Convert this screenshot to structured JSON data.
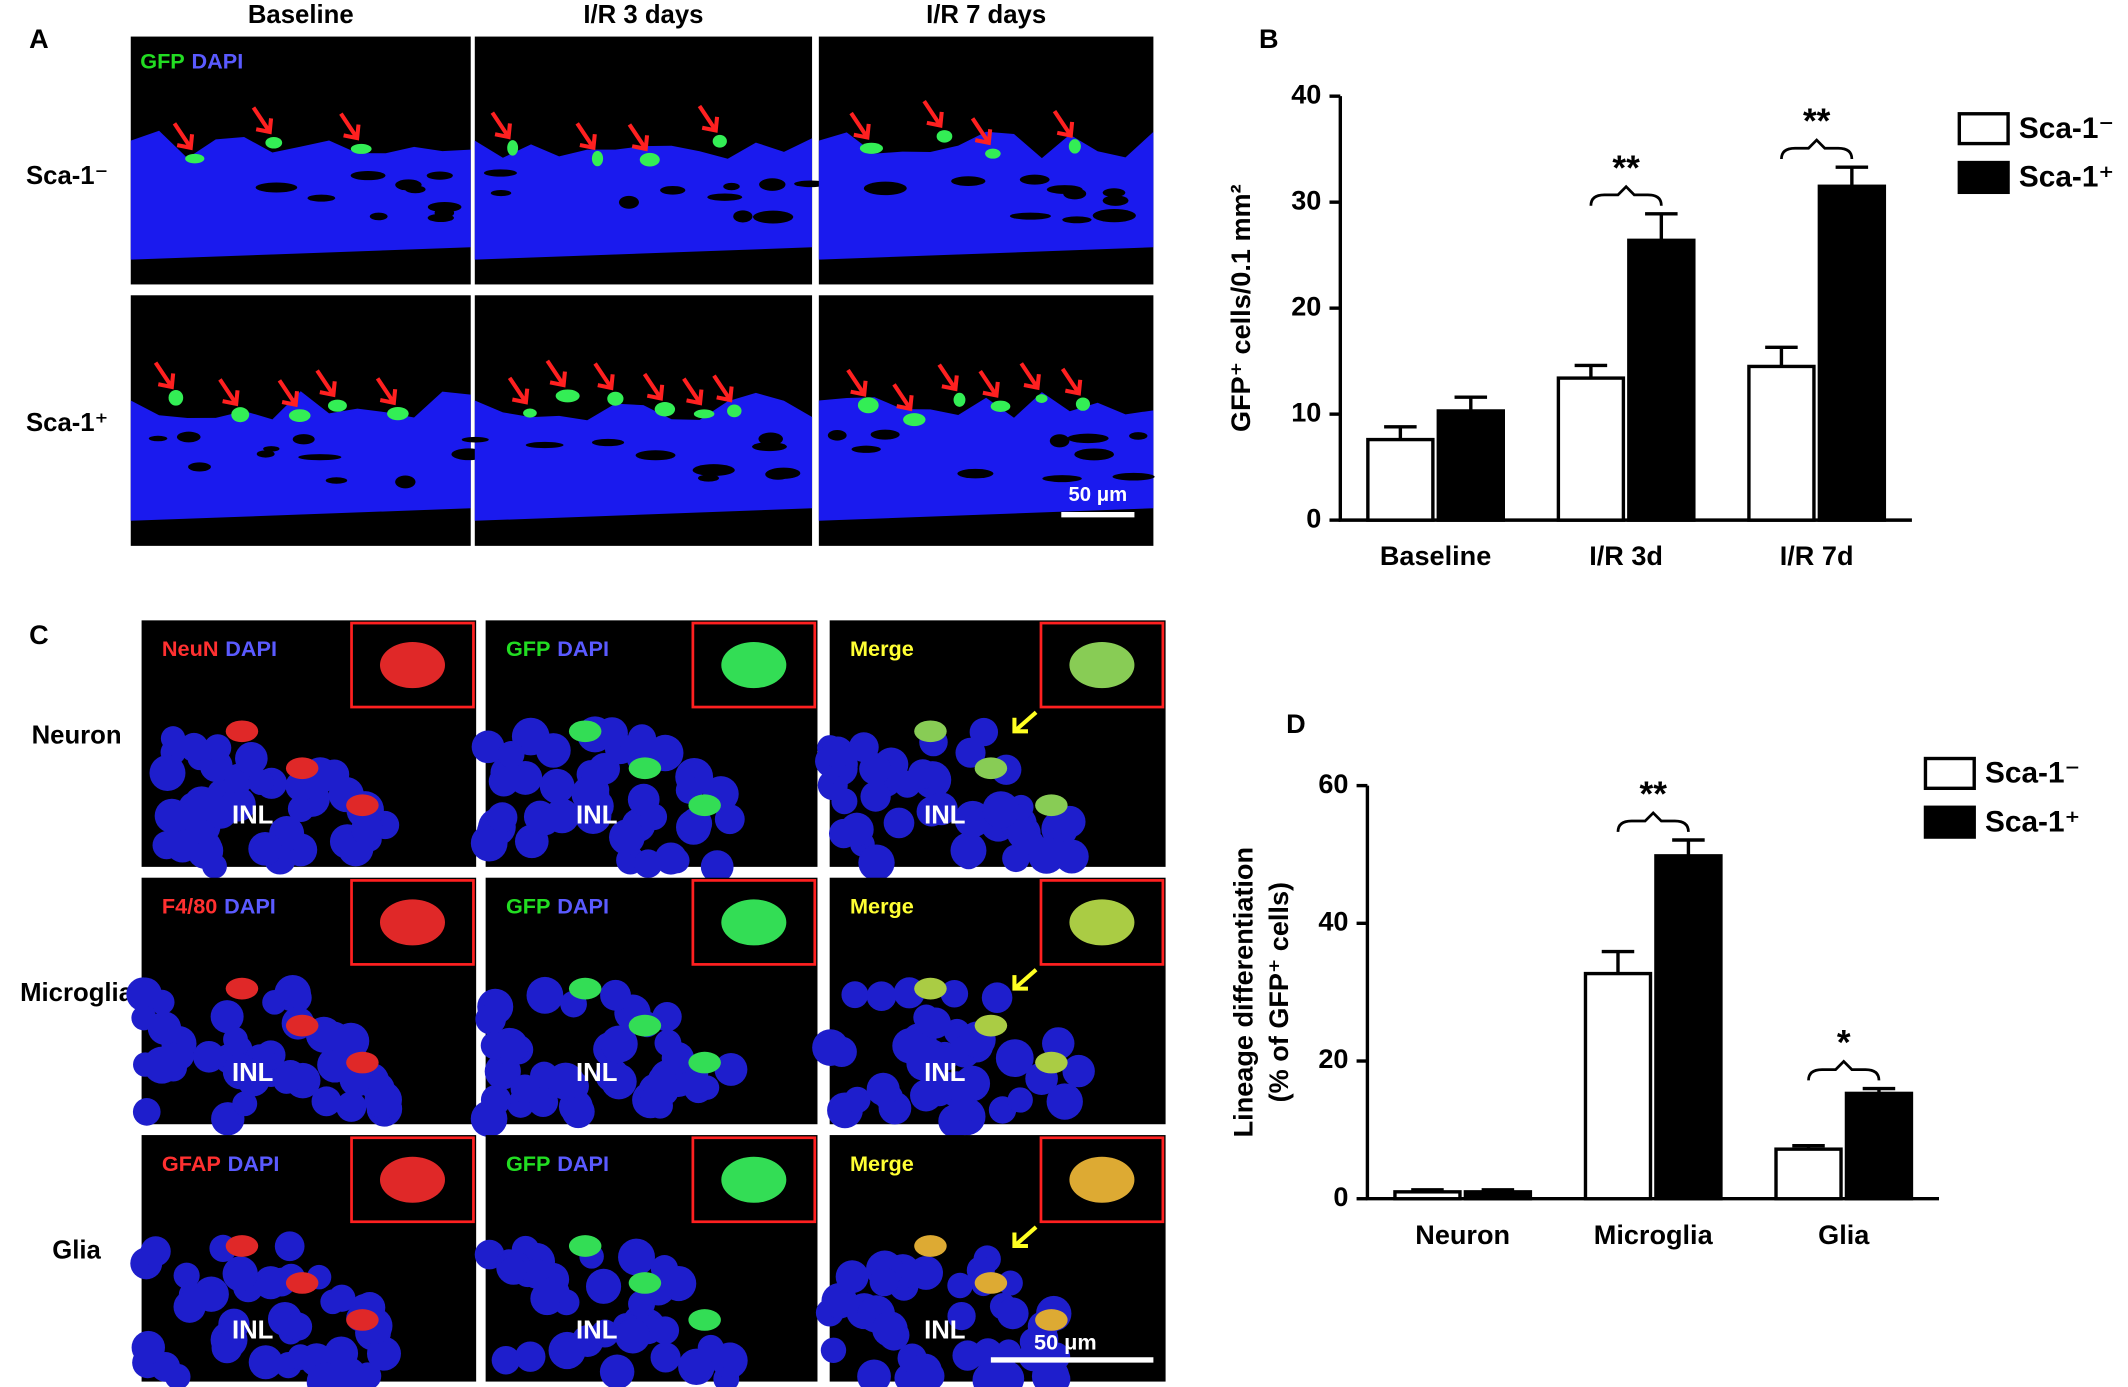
{
  "panel_a": {
    "letter": "A",
    "columns": [
      "Baseline",
      "I/R 3 days",
      "I/R 7 days"
    ],
    "rows": [
      "Sca-1⁻",
      "Sca-1⁺"
    ],
    "stain": [
      {
        "text": "GFP",
        "color": "#22dd22"
      },
      {
        "text": "DAPI",
        "color": "#5a5aff"
      }
    ],
    "scale_bar": "50 μm"
  },
  "panel_c": {
    "letter": "C",
    "rows": [
      "Neuron",
      "Microglia",
      "Glia"
    ],
    "stains": [
      [
        [
          {
            "text": "NeuN",
            "color": "#ff3030"
          },
          {
            "text": "DAPI",
            "color": "#5a5aff"
          }
        ],
        [
          {
            "text": "GFP",
            "color": "#22dd22"
          },
          {
            "text": "DAPI",
            "color": "#5a5aff"
          }
        ],
        [
          {
            "text": "Merge",
            "color": "#ffff33"
          }
        ]
      ],
      [
        [
          {
            "text": "F4/80",
            "color": "#ff3030"
          },
          {
            "text": "DAPI",
            "color": "#5a5aff"
          }
        ],
        [
          {
            "text": "GFP",
            "color": "#22dd22"
          },
          {
            "text": "DAPI",
            "color": "#5a5aff"
          }
        ],
        [
          {
            "text": "Merge",
            "color": "#ffff33"
          }
        ]
      ],
      [
        [
          {
            "text": "GFAP",
            "color": "#ff3030"
          },
          {
            "text": "DAPI",
            "color": "#5a5aff"
          }
        ],
        [
          {
            "text": "GFP",
            "color": "#22dd22"
          },
          {
            "text": "DAPI",
            "color": "#5a5aff"
          }
        ],
        [
          {
            "text": "Merge",
            "color": "#ffff33"
          }
        ]
      ]
    ],
    "region": "INL",
    "scale_bar": "50 μm"
  },
  "chart_data": [
    {
      "type": "bar",
      "panel_label": "B",
      "categories": [
        "Baseline",
        "I/R 3d",
        "I/R 7d"
      ],
      "y_label": [
        "GFP⁺ cells/0.1 mm²"
      ],
      "ylim": [
        0,
        40
      ],
      "yticks": [
        0,
        10,
        20,
        30,
        40
      ],
      "legend": "upper right",
      "series": [
        {
          "name": "Sca-1⁻",
          "color": "#ffffff",
          "values": [
            7.6,
            13.4,
            14.5
          ],
          "errors": [
            1.2,
            1.2,
            1.8
          ]
        },
        {
          "name": "Sca-1⁺",
          "color": "#000000",
          "values": [
            10.3,
            26.4,
            31.5
          ],
          "errors": [
            1.3,
            2.5,
            1.8
          ]
        }
      ],
      "annotations": [
        null,
        "**",
        "**"
      ]
    },
    {
      "type": "bar",
      "panel_label": "D",
      "categories": [
        "Neuron",
        "Microglia",
        "Glia"
      ],
      "y_label": [
        "Lineage differentiation",
        "(% of GFP⁺ cells)"
      ],
      "ylim": [
        0,
        60
      ],
      "yticks": [
        0,
        20,
        40,
        60
      ],
      "legend": "upper right",
      "series": [
        {
          "name": "Sca-1⁻",
          "color": "#ffffff",
          "values": [
            1.0,
            32.7,
            7.2
          ],
          "errors": [
            0.3,
            3.2,
            0.5
          ]
        },
        {
          "name": "Sca-1⁺",
          "color": "#000000",
          "values": [
            1.0,
            49.8,
            15.3
          ],
          "errors": [
            0.3,
            2.3,
            0.7
          ]
        }
      ],
      "annotations": [
        null,
        "**",
        "*"
      ]
    }
  ]
}
